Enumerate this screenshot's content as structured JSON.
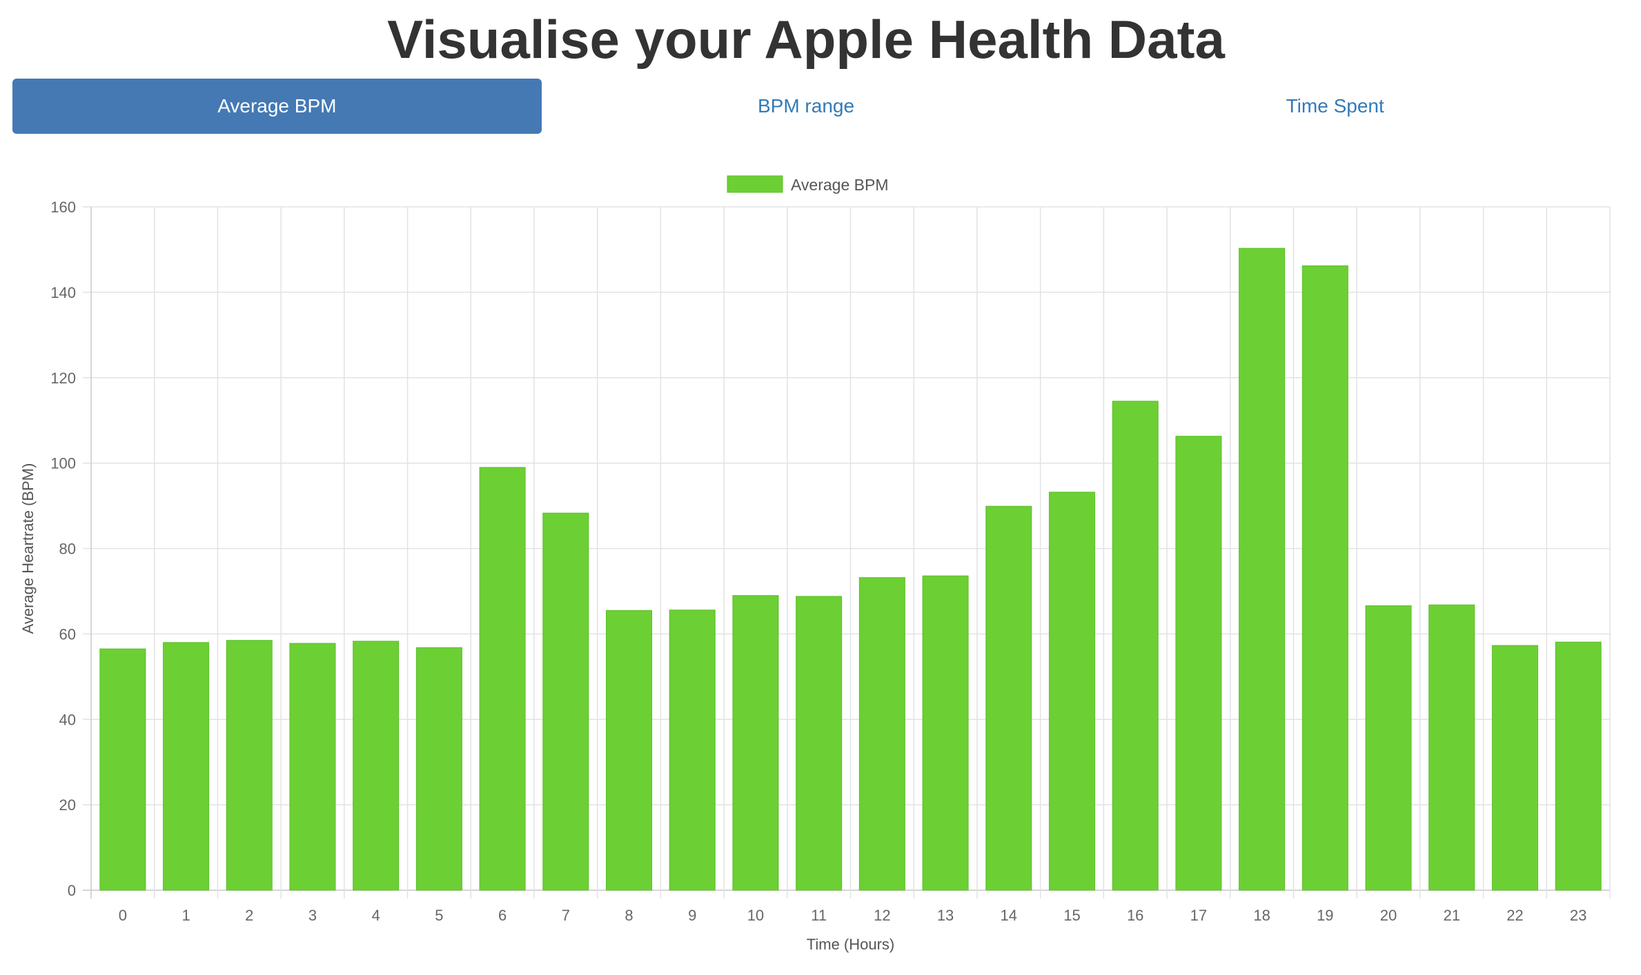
{
  "page": {
    "title": "Visualise your Apple Health Data"
  },
  "tabs": [
    {
      "label": "Average BPM",
      "active": true
    },
    {
      "label": "BPM range",
      "active": false
    },
    {
      "label": "Time Spent",
      "active": false
    }
  ],
  "colors": {
    "accent": "#4479b4",
    "link": "#337ab7",
    "bar": "#6ccf34"
  },
  "chart_data": {
    "type": "bar",
    "categories": [
      "0",
      "1",
      "2",
      "3",
      "4",
      "5",
      "6",
      "7",
      "8",
      "9",
      "10",
      "11",
      "12",
      "13",
      "14",
      "15",
      "16",
      "17",
      "18",
      "19",
      "20",
      "21",
      "22",
      "23"
    ],
    "series": [
      {
        "name": "Average BPM",
        "values": [
          56.5,
          58,
          58.5,
          57.8,
          58.3,
          56.8,
          99,
          88.3,
          65.5,
          65.6,
          69,
          68.8,
          73.2,
          73.6,
          89.9,
          93.2,
          114.5,
          106.3,
          150.3,
          146.2,
          66.6,
          66.8,
          57.3,
          58.1
        ]
      }
    ],
    "xlabel": "Time (Hours)",
    "ylabel": "Average Heartrate (BPM)",
    "ylim": [
      0,
      160
    ],
    "yticks": [
      "0",
      "20",
      "40",
      "60",
      "80",
      "100",
      "120",
      "140",
      "160"
    ],
    "grid": true,
    "legend": "top-center"
  }
}
